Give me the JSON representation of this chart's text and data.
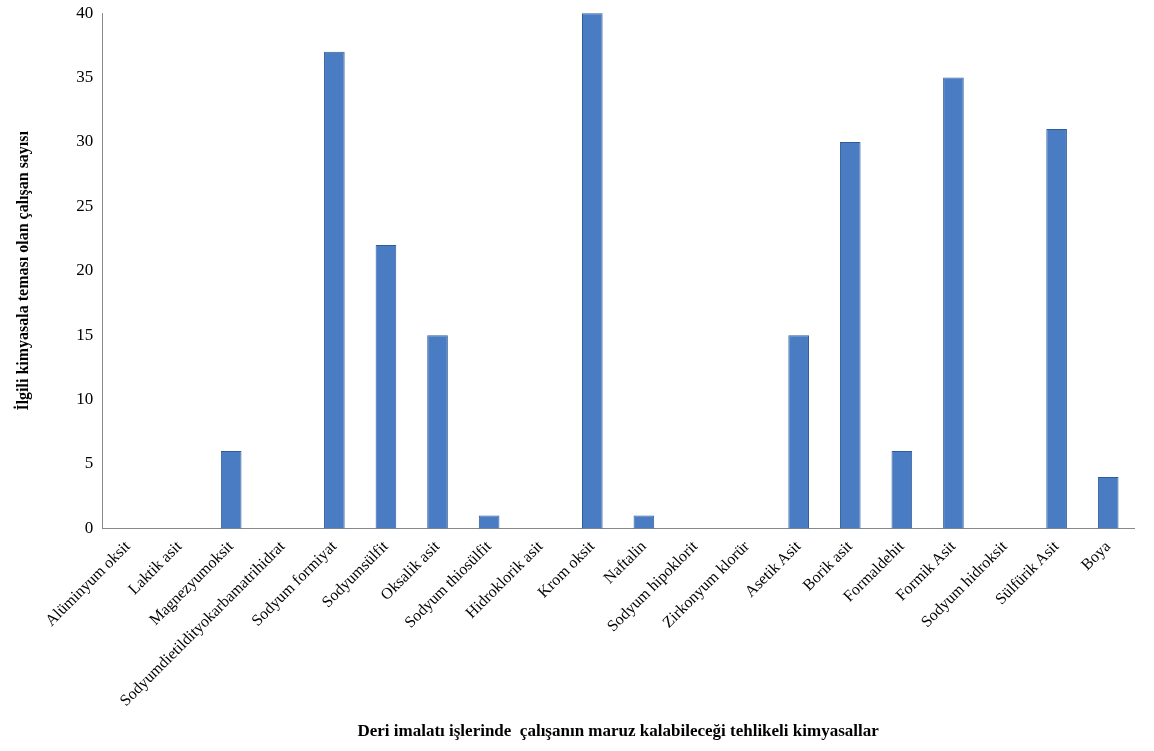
{
  "chart_data": {
    "type": "bar",
    "xlabel": "Deri imalatı işlerinde  çalışanın maruz kalabileceği tehlikeli kimyasallar",
    "ylabel": "İlgili kimyasala teması olan çalışan sayısı",
    "categories": [
      "Alüminyum oksit",
      "Laktik asit",
      "Magnezyumoksit",
      "Sodyumdietildityokarbamatrihidrat",
      "Sodyum formiyat",
      "Sodyumsülfit",
      "Oksalik asit",
      "Sodyum thiosülfit",
      "Hidroklorik asit",
      "Krom oksit",
      "Naftalin",
      "Sodyum hipoklorit",
      "Zirkonyum klorür",
      "Asetik Asit",
      "Borik asit",
      "Formaldehit",
      "Formik Asit",
      "Sodyum hidroksit",
      "Sülfürik Asit",
      "Boya"
    ],
    "values": [
      0,
      0,
      6,
      0,
      37,
      22,
      15,
      1,
      0,
      40,
      1,
      0,
      0,
      15,
      30,
      6,
      35,
      0,
      31,
      4
    ],
    "color": "#4a7cc4",
    "ylim": [
      0,
      40
    ],
    "yticks": [
      0,
      5,
      10,
      15,
      20,
      25,
      30,
      35,
      40
    ],
    "grid": false,
    "legend": false
  }
}
